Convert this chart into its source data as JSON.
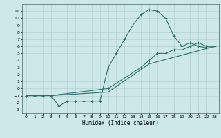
{
  "title": "",
  "xlabel": "Humidex (Indice chaleur)",
  "ylabel": "",
  "bg_color": "#cde8e8",
  "grid_color": "#b0cccc",
  "line_color": "#2e6e6e",
  "xlim": [
    -0.5,
    23.5
  ],
  "ylim": [
    -3.5,
    12.0
  ],
  "xticks": [
    0,
    1,
    2,
    3,
    4,
    5,
    6,
    7,
    8,
    9,
    10,
    11,
    12,
    13,
    14,
    15,
    16,
    17,
    18,
    19,
    20,
    21,
    22,
    23
  ],
  "yticks": [
    -3,
    -2,
    -1,
    0,
    1,
    2,
    3,
    4,
    5,
    6,
    7,
    8,
    9,
    10,
    11
  ],
  "series1_x": [
    0,
    1,
    2,
    3,
    4,
    5,
    6,
    7,
    8,
    9,
    10,
    11,
    12,
    13,
    14,
    15,
    16,
    17,
    18,
    19,
    20,
    21,
    22,
    23
  ],
  "series1_y": [
    -1,
    -1,
    -1,
    -1,
    -2.5,
    -1.8,
    -1.8,
    -1.8,
    -1.8,
    -1.8,
    3,
    5,
    7,
    9,
    10.5,
    11.2,
    11,
    10,
    7.5,
    6,
    6.5,
    6,
    5.8,
    5.8
  ],
  "series2_x": [
    0,
    3,
    10,
    14,
    15,
    16,
    17,
    18,
    19,
    20,
    21,
    22,
    23
  ],
  "series2_y": [
    -1,
    -1,
    0,
    3,
    4,
    5,
    5,
    5.5,
    5.5,
    6,
    6.5,
    6,
    6
  ],
  "series3_x": [
    0,
    3,
    10,
    15,
    23
  ],
  "series3_y": [
    -1,
    -1,
    -0.5,
    3.5,
    6
  ],
  "tick_fontsize": 4.5,
  "xlabel_fontsize": 5.5
}
